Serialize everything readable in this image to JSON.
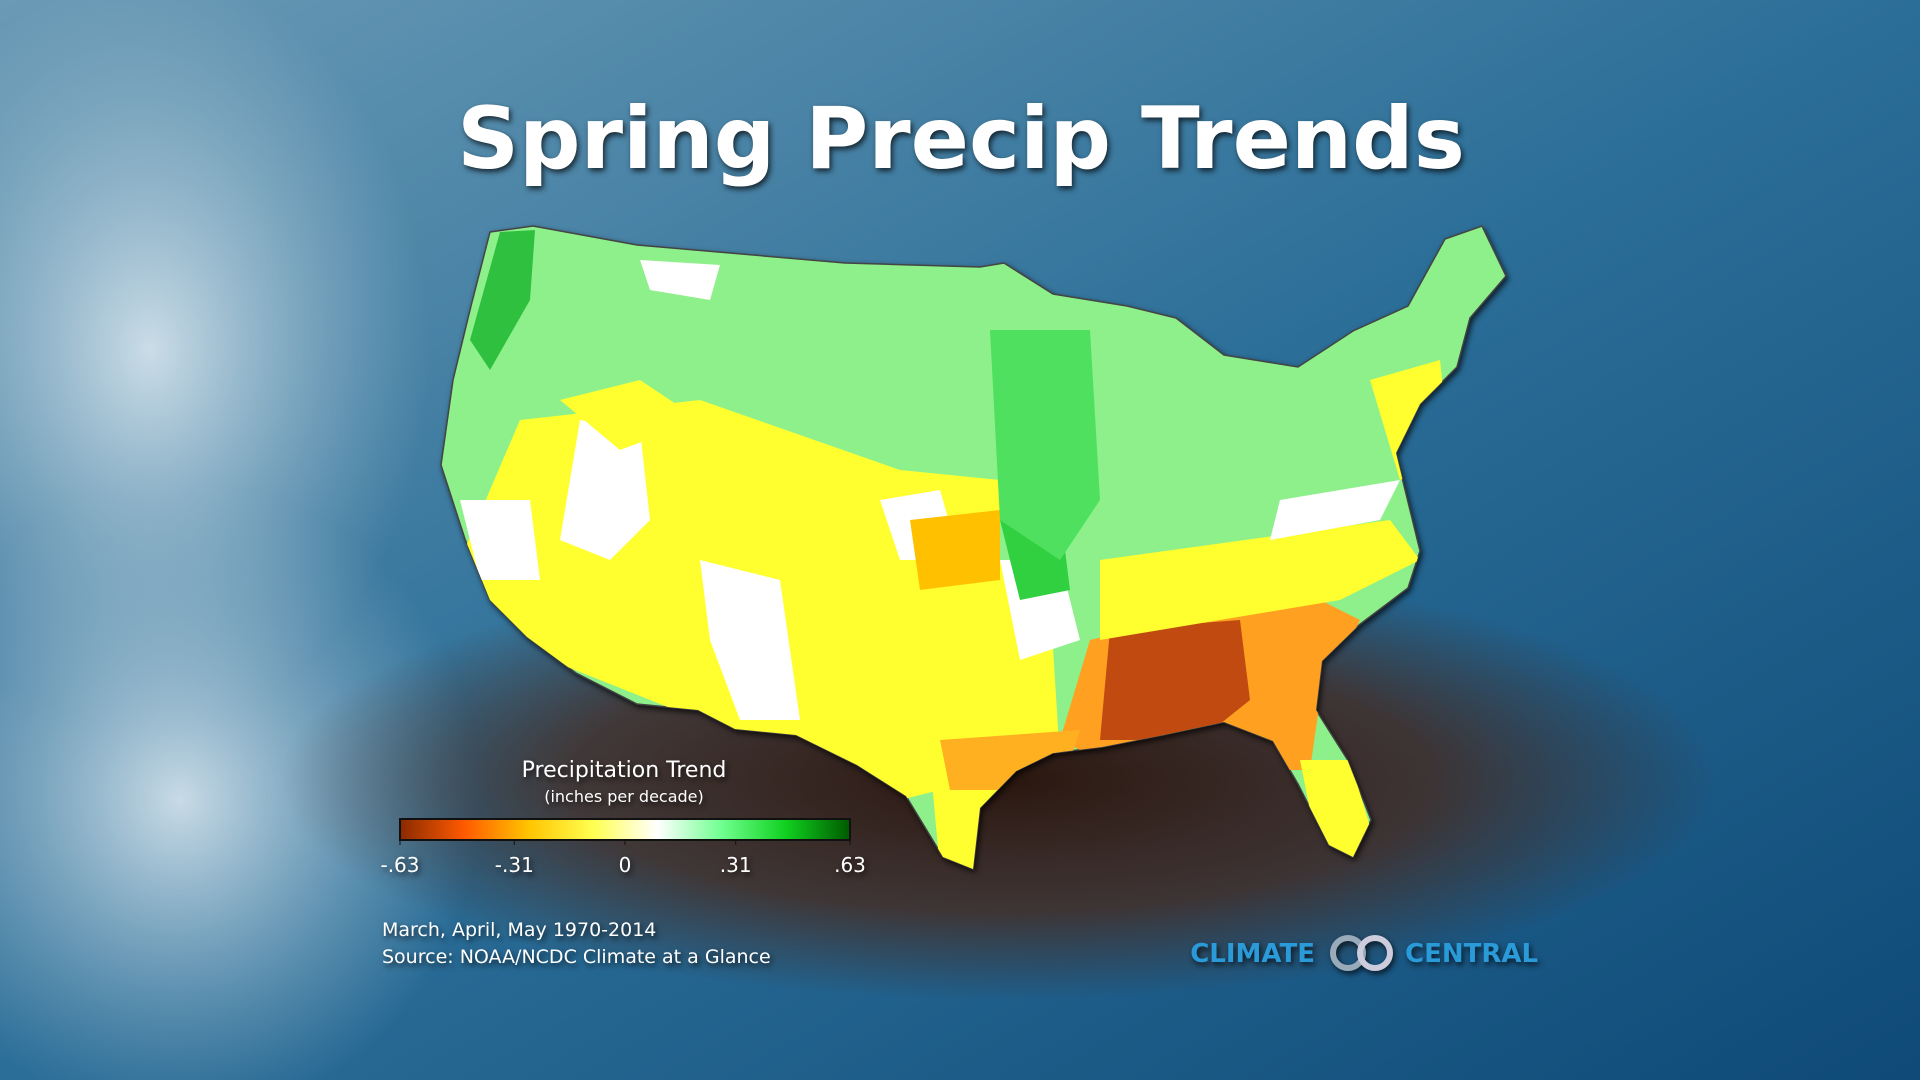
{
  "title": "Spring Precip Trends",
  "legend": {
    "title": "Precipitation Trend",
    "subtitle": "(inches per decade)",
    "lim": [
      -0.63,
      0.63
    ],
    "ticks": [
      {
        "value": -0.63,
        "label": "-.63"
      },
      {
        "value": -0.31,
        "label": "-.31"
      },
      0,
      {
        "value": 0.31,
        "label": ".31"
      },
      {
        "value": 0.63,
        "label": ".63"
      }
    ],
    "colors": [
      "#8a2a00",
      "#ff5a00",
      "#ffc400",
      "#ffff50",
      "#ffffff",
      "#70ff90",
      "#10d020",
      "#005a00"
    ]
  },
  "footnote": [
    "March, April, May 1970-2014",
    "Source: NOAA/NCDC Climate at a Glance"
  ],
  "logo": [
    "CLIMATE",
    "CENTRAL"
  ]
}
